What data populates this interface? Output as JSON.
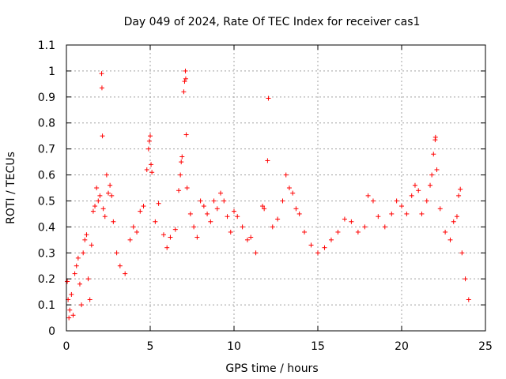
{
  "chart_data": {
    "type": "scatter",
    "title": "Day 049 of 2024, Rate Of TEC Index for receiver cas1",
    "xlabel": "GPS time / hours",
    "ylabel": "ROTI / TECUs",
    "xlim": [
      0,
      25
    ],
    "ylim": [
      0,
      1.1
    ],
    "xticks": [
      "0",
      "5",
      "10",
      "15",
      "20",
      "25"
    ],
    "yticks": [
      "0",
      "0.1",
      "0.2",
      "0.3",
      "0.4",
      "0.5",
      "0.6",
      "0.7",
      "0.8",
      "0.9",
      "1",
      "1.1"
    ],
    "grid": true,
    "marker": "+",
    "color": "#ff0000",
    "series": [
      {
        "name": "ROTI",
        "points": [
          [
            0.05,
            0.19
          ],
          [
            0.1,
            0.12
          ],
          [
            0.15,
            0.05
          ],
          [
            0.2,
            0.08
          ],
          [
            0.3,
            0.14
          ],
          [
            0.4,
            0.06
          ],
          [
            0.5,
            0.22
          ],
          [
            0.6,
            0.25
          ],
          [
            0.7,
            0.28
          ],
          [
            0.8,
            0.18
          ],
          [
            0.9,
            0.1
          ],
          [
            1.0,
            0.3
          ],
          [
            1.1,
            0.35
          ],
          [
            1.2,
            0.37
          ],
          [
            1.3,
            0.2
          ],
          [
            1.4,
            0.12
          ],
          [
            1.5,
            0.33
          ],
          [
            1.6,
            0.46
          ],
          [
            1.7,
            0.48
          ],
          [
            1.8,
            0.55
          ],
          [
            1.9,
            0.5
          ],
          [
            2.0,
            0.52
          ],
          [
            2.1,
            0.99
          ],
          [
            2.12,
            0.935
          ],
          [
            2.15,
            0.75
          ],
          [
            2.2,
            0.47
          ],
          [
            2.3,
            0.44
          ],
          [
            2.4,
            0.6
          ],
          [
            2.5,
            0.53
          ],
          [
            2.6,
            0.56
          ],
          [
            2.7,
            0.52
          ],
          [
            2.8,
            0.42
          ],
          [
            3.0,
            0.3
          ],
          [
            3.2,
            0.25
          ],
          [
            3.5,
            0.22
          ],
          [
            3.8,
            0.35
          ],
          [
            4.0,
            0.4
          ],
          [
            4.2,
            0.38
          ],
          [
            4.4,
            0.46
          ],
          [
            4.6,
            0.48
          ],
          [
            4.8,
            0.62
          ],
          [
            4.9,
            0.7
          ],
          [
            4.95,
            0.73
          ],
          [
            5.0,
            0.75
          ],
          [
            5.05,
            0.64
          ],
          [
            5.1,
            0.61
          ],
          [
            5.3,
            0.42
          ],
          [
            5.5,
            0.49
          ],
          [
            5.8,
            0.37
          ],
          [
            6.0,
            0.32
          ],
          [
            6.2,
            0.36
          ],
          [
            6.5,
            0.39
          ],
          [
            6.7,
            0.54
          ],
          [
            6.8,
            0.6
          ],
          [
            6.85,
            0.65
          ],
          [
            6.9,
            0.67
          ],
          [
            7.0,
            0.92
          ],
          [
            7.05,
            0.96
          ],
          [
            7.1,
            1.0
          ],
          [
            7.12,
            0.97
          ],
          [
            7.15,
            0.755
          ],
          [
            7.2,
            0.55
          ],
          [
            7.4,
            0.45
          ],
          [
            7.6,
            0.4
          ],
          [
            7.8,
            0.36
          ],
          [
            8.0,
            0.5
          ],
          [
            8.2,
            0.48
          ],
          [
            8.4,
            0.45
          ],
          [
            8.6,
            0.42
          ],
          [
            8.8,
            0.5
          ],
          [
            9.0,
            0.47
          ],
          [
            9.2,
            0.53
          ],
          [
            9.4,
            0.5
          ],
          [
            9.6,
            0.44
          ],
          [
            9.8,
            0.38
          ],
          [
            10.0,
            0.46
          ],
          [
            10.2,
            0.44
          ],
          [
            10.5,
            0.4
          ],
          [
            10.8,
            0.35
          ],
          [
            11.0,
            0.36
          ],
          [
            11.3,
            0.3
          ],
          [
            11.7,
            0.48
          ],
          [
            11.8,
            0.47
          ],
          [
            12.0,
            0.655
          ],
          [
            12.05,
            0.895
          ],
          [
            12.3,
            0.4
          ],
          [
            12.6,
            0.43
          ],
          [
            12.9,
            0.5
          ],
          [
            13.1,
            0.6
          ],
          [
            13.3,
            0.55
          ],
          [
            13.5,
            0.53
          ],
          [
            13.7,
            0.47
          ],
          [
            13.9,
            0.45
          ],
          [
            14.2,
            0.38
          ],
          [
            14.6,
            0.33
          ],
          [
            15.0,
            0.3
          ],
          [
            15.4,
            0.32
          ],
          [
            15.8,
            0.35
          ],
          [
            16.2,
            0.38
          ],
          [
            16.6,
            0.43
          ],
          [
            17.0,
            0.42
          ],
          [
            17.4,
            0.38
          ],
          [
            17.8,
            0.4
          ],
          [
            18.0,
            0.52
          ],
          [
            18.3,
            0.5
          ],
          [
            18.6,
            0.44
          ],
          [
            19.0,
            0.4
          ],
          [
            19.4,
            0.45
          ],
          [
            19.7,
            0.5
          ],
          [
            20.0,
            0.48
          ],
          [
            20.3,
            0.45
          ],
          [
            20.6,
            0.52
          ],
          [
            20.8,
            0.56
          ],
          [
            21.0,
            0.54
          ],
          [
            21.2,
            0.45
          ],
          [
            21.5,
            0.5
          ],
          [
            21.7,
            0.56
          ],
          [
            21.8,
            0.6
          ],
          [
            21.9,
            0.68
          ],
          [
            22.0,
            0.735
          ],
          [
            22.02,
            0.745
          ],
          [
            22.1,
            0.62
          ],
          [
            22.3,
            0.47
          ],
          [
            22.6,
            0.38
          ],
          [
            22.9,
            0.35
          ],
          [
            23.1,
            0.42
          ],
          [
            23.3,
            0.44
          ],
          [
            23.4,
            0.52
          ],
          [
            23.5,
            0.545
          ],
          [
            23.6,
            0.3
          ],
          [
            23.8,
            0.2
          ],
          [
            24.0,
            0.12
          ]
        ]
      }
    ]
  }
}
